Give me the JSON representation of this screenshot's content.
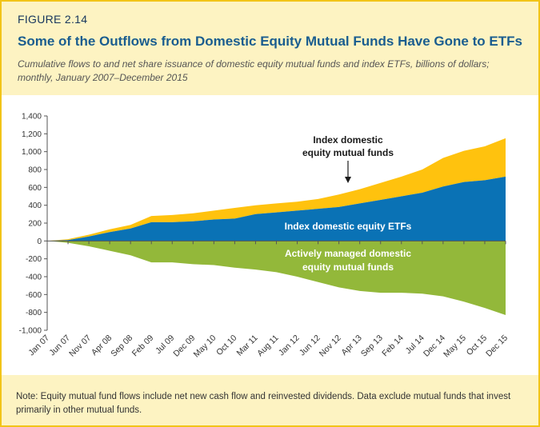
{
  "figure_label": "FIGURE 2.14",
  "title": "Some of the Outflows from Domestic Equity Mutual Funds Have Gone to ETFs",
  "subtitle": "Cumulative flows to and net share issuance of domestic equity mutual funds and index ETFs, billions of dollars; monthly, January 2007–December 2015",
  "note": "Note: Equity mutual fund flows include net new cash flow and reinvested dividends. Data exclude mutual funds that invest primarily in other mutual funds.",
  "colors": {
    "frame": "#f2c418",
    "etf": "#0a72b5",
    "index_mf": "#ffc20e",
    "active_mf": "#93b83a"
  },
  "chart_data": {
    "type": "area",
    "title": "Some of the Outflows from Domestic Equity Mutual Funds Have Gone to ETFs",
    "units": "billions of dollars",
    "ylim": [
      -1000,
      1400
    ],
    "y_ticks": [
      -1000,
      -800,
      -600,
      -400,
      -200,
      0,
      200,
      400,
      600,
      800,
      1000,
      1200,
      1400
    ],
    "y_tick_labels": [
      "-1,000",
      "-800",
      "-600",
      "-400",
      "-200",
      "0",
      "200",
      "400",
      "600",
      "800",
      "1,000",
      "1,200",
      "1,400"
    ],
    "x_tick_labels": [
      "Jan 07",
      "Jun 07",
      "Nov 07",
      "Apr 08",
      "Sep 08",
      "Feb 09",
      "Jul 09",
      "Dec 09",
      "May 10",
      "Oct 10",
      "Mar 11",
      "Aug 11",
      "Jan 12",
      "Jun 12",
      "Nov 12",
      "Apr 13",
      "Sep 13",
      "Feb 14",
      "Jul 14",
      "Dec 14",
      "May 15",
      "Oct 15",
      "Dec 15"
    ],
    "x": [
      "Jan 07",
      "Jun 07",
      "Nov 07",
      "Apr 08",
      "Sep 08",
      "Feb 09",
      "Jul 09",
      "Dec 09",
      "May 10",
      "Oct 10",
      "Mar 11",
      "Aug 11",
      "Jan 12",
      "Jun 12",
      "Nov 12",
      "Apr 13",
      "Sep 13",
      "Feb 14",
      "Jul 14",
      "Dec 14",
      "May 15",
      "Oct 15",
      "Dec 15"
    ],
    "series": [
      {
        "name": "Index domestic equity ETFs",
        "label": "Index domestic equity ETFs",
        "values": [
          0,
          10,
          50,
          100,
          140,
          210,
          210,
          220,
          240,
          250,
          300,
          320,
          340,
          360,
          380,
          420,
          460,
          500,
          540,
          610,
          660,
          680,
          720
        ]
      },
      {
        "name": "Index domestic equity mutual funds",
        "label": "Index domestic equity mutual funds",
        "stacked_on": "Index domestic equity ETFs",
        "values": [
          0,
          20,
          70,
          130,
          180,
          280,
          290,
          310,
          340,
          370,
          400,
          420,
          440,
          470,
          520,
          580,
          650,
          720,
          800,
          930,
          1010,
          1060,
          1150
        ]
      },
      {
        "name": "Actively managed domestic equity mutual funds",
        "label": "Actively managed domestic equity mutual funds",
        "values": [
          0,
          -20,
          -60,
          -110,
          -160,
          -240,
          -240,
          -260,
          -270,
          -300,
          -320,
          -350,
          -400,
          -460,
          -520,
          -560,
          -580,
          -580,
          -590,
          -620,
          -680,
          -750,
          -830
        ]
      }
    ],
    "annotations": [
      {
        "text_lines": [
          "Index domestic",
          "equity mutual funds"
        ],
        "arrow": true
      }
    ],
    "grid": false,
    "legend": "none"
  }
}
